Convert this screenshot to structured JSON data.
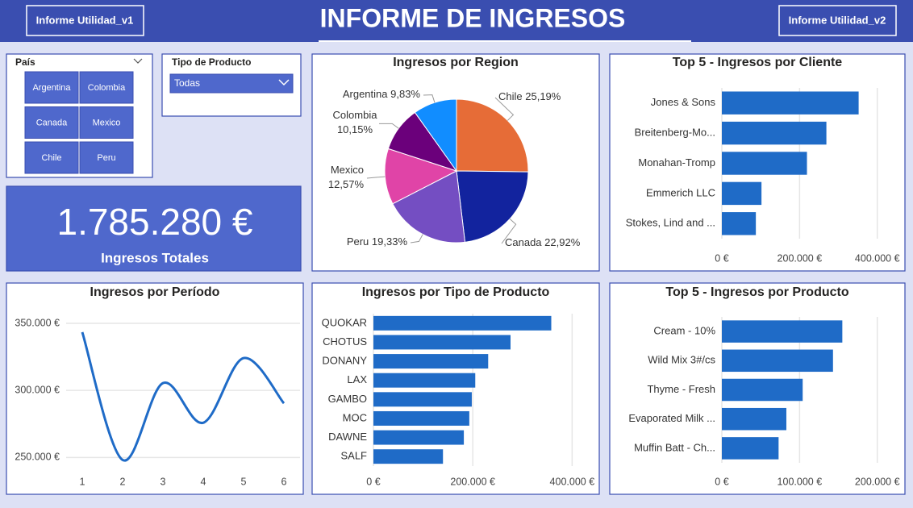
{
  "header": {
    "title": "INFORME DE INGRESOS",
    "buttons": [
      "Informe Utilidad_v1",
      "Informe Utilidad_v2"
    ]
  },
  "slicers": [
    {
      "title": "País",
      "options": [
        "Argentina",
        "Colombia",
        "Canada",
        "Mexico",
        "Chile",
        "Peru"
      ]
    },
    {
      "title": "Tipo de Producto",
      "selected": "Todas"
    }
  ],
  "kpi": {
    "value": "1.785.280 €",
    "label": "Ingresos Totales"
  },
  "chart_data": [
    {
      "type": "pie",
      "title": "Ingresos por Region",
      "categories": [
        "Chile",
        "Canada",
        "Peru",
        "Mexico",
        "Colombia",
        "Argentina"
      ],
      "values": [
        25.19,
        22.92,
        19.33,
        12.57,
        10.15,
        9.83
      ],
      "value_labels": [
        "25,19%",
        "22,92%",
        "19,33%",
        "12,57%",
        "10,15%",
        "9,83%"
      ],
      "colors": [
        "#e66c37",
        "#12239e",
        "#744ec2",
        "#e044a7",
        "#6b007b",
        "#118dff"
      ]
    },
    {
      "type": "bar",
      "horizontal": true,
      "title": "Top 5 - Ingresos por Cliente",
      "categories": [
        "Jones & Sons",
        "Breitenberg-Mo...",
        "Monahan-Tromp",
        "Emmerich LLC",
        "Stokes, Lind and ..."
      ],
      "values": [
        352000,
        269000,
        219000,
        102000,
        87500
      ],
      "color": "#1f6bc7",
      "xlim": [
        0,
        440000
      ],
      "xticks": [
        {
          "value": 0,
          "label": "0 €"
        },
        {
          "value": 200000,
          "label": "200.000 €"
        },
        {
          "value": 400000,
          "label": "400.000 €"
        }
      ],
      "grid": true
    },
    {
      "type": "line",
      "title": "Ingresos por Período",
      "x": [
        1,
        2,
        3,
        4,
        5,
        6
      ],
      "values": [
        343400,
        248200,
        305400,
        275900,
        324100,
        290400
      ],
      "color": "#1f6bc7",
      "xlim": [
        0.6,
        6.4
      ],
      "xticks": [
        1,
        2,
        3,
        4,
        5,
        6
      ],
      "ylim": [
        240000,
        365000
      ],
      "yticks": [
        {
          "value": 250000,
          "label": "250.000 €"
        },
        {
          "value": 300000,
          "label": "300.000 €"
        },
        {
          "value": 350000,
          "label": "350.000 €"
        }
      ],
      "grid": true
    },
    {
      "type": "bar",
      "horizontal": true,
      "title": "Ingresos por Tipo de Producto",
      "categories": [
        "QUOKAR",
        "CHOTUS",
        "DONANY",
        "LAX",
        "GAMBO",
        "MOC",
        "DAWNE",
        "SALF"
      ],
      "values": [
        358000,
        276000,
        231000,
        205000,
        198000,
        193000,
        182000,
        140000
      ],
      "color": "#1f6bc7",
      "xlim": [
        0,
        440000
      ],
      "xticks": [
        {
          "value": 0,
          "label": "0 €"
        },
        {
          "value": 200000,
          "label": "200.000 €"
        },
        {
          "value": 400000,
          "label": "400.000 €"
        }
      ],
      "grid": true
    },
    {
      "type": "bar",
      "horizontal": true,
      "title": "Top 5 - Ingresos por Producto",
      "categories": [
        "Cream - 10%",
        "Wild Mix 3#/cs",
        "Thyme - Fresh",
        "Evaporated Milk ...",
        "Muffin Batt - Ch..."
      ],
      "values": [
        155000,
        143000,
        104000,
        83000,
        73000
      ],
      "color": "#1f6bc7",
      "xlim": [
        0,
        220000
      ],
      "xticks": [
        {
          "value": 0,
          "label": "0 €"
        },
        {
          "value": 100000,
          "label": "100.000 €"
        },
        {
          "value": 200000,
          "label": "200.000 €"
        }
      ],
      "grid": true
    }
  ]
}
